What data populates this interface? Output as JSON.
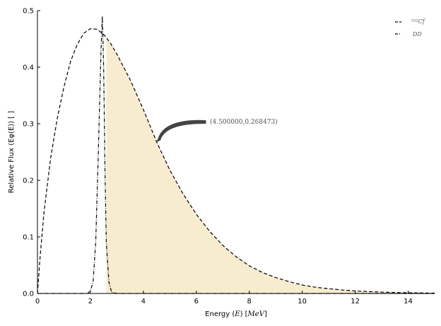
{
  "chart_data": {
    "type": "line",
    "xlabel_prefix": "Energy (",
    "xlabel_var": "E",
    "xlabel_mid": ") [",
    "xlabel_unit": "MeV",
    "xlabel_suffix": "]",
    "ylabel": "Relative Flux (Eφ(E)) [ ]",
    "xlim": [
      0,
      15
    ],
    "ylim": [
      0,
      0.5
    ],
    "xticks": [
      0,
      2,
      4,
      6,
      8,
      10,
      12,
      14
    ],
    "yticks": [
      0.0,
      0.1,
      0.2,
      0.3,
      0.4,
      0.5
    ],
    "ytick_labels": [
      "0.0",
      "0.1",
      "0.2",
      "0.3",
      "0.4",
      "0.5"
    ],
    "grid": false,
    "legend_position": "top-right",
    "series": [
      {
        "name": "²⁵²Cf",
        "style": "dashed",
        "x": [
          0,
          0.1,
          0.25,
          0.5,
          0.75,
          1.0,
          1.25,
          1.5,
          1.75,
          2.0,
          2.25,
          2.5,
          2.75,
          3.0,
          3.5,
          4.0,
          4.5,
          5.0,
          5.5,
          6.0,
          6.5,
          7.0,
          7.5,
          8.0,
          8.5,
          9.0,
          9.5,
          10.0,
          10.5,
          11.0,
          11.5,
          12.0,
          12.5,
          13.0,
          13.5,
          14.0,
          14.5,
          15.0
        ],
        "values": [
          0.0,
          0.065,
          0.145,
          0.24,
          0.31,
          0.365,
          0.41,
          0.44,
          0.46,
          0.468,
          0.467,
          0.458,
          0.443,
          0.423,
          0.378,
          0.325,
          0.268,
          0.218,
          0.176,
          0.14,
          0.11,
          0.085,
          0.065,
          0.049,
          0.037,
          0.028,
          0.021,
          0.015,
          0.011,
          0.0085,
          0.0062,
          0.0045,
          0.0033,
          0.0024,
          0.0017,
          0.0012,
          0.0009,
          0.0006
        ]
      },
      {
        "name": "DD",
        "style": "dashdot",
        "x": [
          0,
          1.9,
          2.0,
          2.1,
          2.2,
          2.3,
          2.4,
          2.45,
          2.5,
          2.55,
          2.6,
          2.7,
          2.8,
          3.0,
          6.0,
          10.0,
          15.0
        ],
        "values": [
          0.0,
          0.0,
          0.005,
          0.02,
          0.09,
          0.25,
          0.43,
          0.49,
          0.4,
          0.22,
          0.09,
          0.02,
          0.002,
          0.0,
          0.0,
          0.0,
          0.0
        ]
      }
    ],
    "shaded_region": {
      "x_start": 2.6,
      "x_end": 15.0,
      "under_series": "²⁵²Cf",
      "color": "#f7ecd0"
    },
    "annotation": {
      "text": "(4.500000,0.268473)",
      "point": [
        4.5,
        0.268473
      ]
    }
  }
}
